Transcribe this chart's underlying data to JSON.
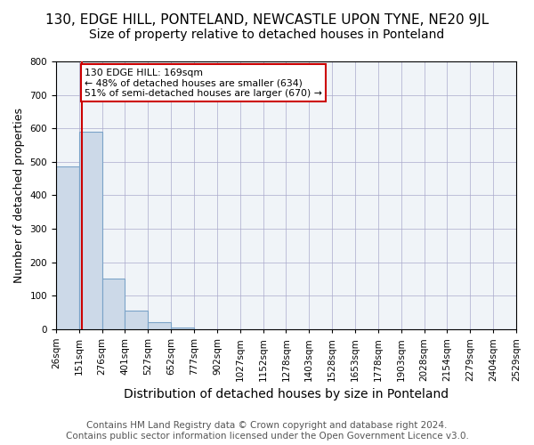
{
  "title": "130, EDGE HILL, PONTELAND, NEWCASTLE UPON TYNE, NE20 9JL",
  "subtitle": "Size of property relative to detached houses in Ponteland",
  "xlabel": "Distribution of detached houses by size in Ponteland",
  "ylabel": "Number of detached properties",
  "footer_line1": "Contains HM Land Registry data © Crown copyright and database right 2024.",
  "footer_line2": "Contains public sector information licensed under the Open Government Licence v3.0.",
  "bin_labels": [
    "26sqm",
    "151sqm",
    "276sqm",
    "401sqm",
    "527sqm",
    "652sqm",
    "777sqm",
    "902sqm",
    "1027sqm",
    "1152sqm",
    "1278sqm",
    "1403sqm",
    "1528sqm",
    "1653sqm",
    "1778sqm",
    "1903sqm",
    "2028sqm",
    "2154sqm",
    "2279sqm",
    "2404sqm",
    "2529sqm"
  ],
  "bar_heights": [
    485,
    590,
    150,
    55,
    20,
    5,
    0,
    0,
    0,
    0,
    0,
    0,
    0,
    0,
    0,
    0,
    0,
    0,
    0,
    0
  ],
  "bar_color": "#ccd9e8",
  "bar_edge_color": "#7ba3c8",
  "bar_edge_width": 0.8,
  "ylim": [
    0,
    800
  ],
  "yticks": [
    0,
    100,
    200,
    300,
    400,
    500,
    600,
    700,
    800
  ],
  "property_line_color": "#cc0000",
  "annotation_text": "130 EDGE HILL: 169sqm\n← 48% of detached houses are smaller (634)\n51% of semi-detached houses are larger (670) →",
  "annotation_box_color": "#cc0000",
  "annotation_text_color": "#000000",
  "background_color": "#f0f4f8",
  "grid_color": "#aaaacc",
  "title_fontsize": 11,
  "subtitle_fontsize": 10,
  "ylabel_fontsize": 9,
  "xlabel_fontsize": 10,
  "tick_fontsize": 7.5,
  "footer_fontsize": 7.5
}
